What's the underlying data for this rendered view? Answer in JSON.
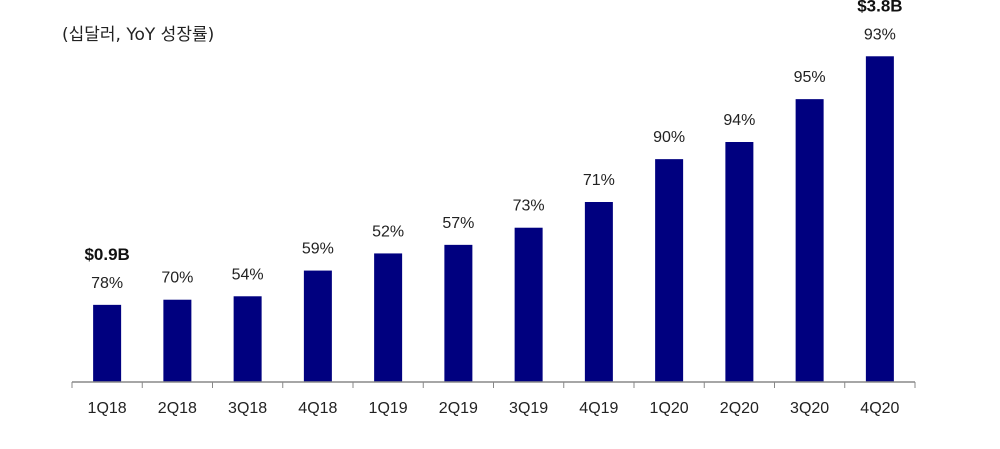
{
  "chart_data": {
    "type": "bar",
    "title": "",
    "unit_label": "(십달러, YoY 성장률)",
    "xlabel": "",
    "ylabel": "",
    "categories": [
      "1Q18",
      "2Q18",
      "3Q18",
      "4Q18",
      "1Q19",
      "2Q19",
      "3Q19",
      "4Q19",
      "1Q20",
      "2Q20",
      "3Q20",
      "4Q20"
    ],
    "values": [
      0.9,
      0.96,
      1.0,
      1.3,
      1.5,
      1.6,
      1.8,
      2.1,
      2.6,
      2.8,
      3.3,
      3.8
    ],
    "bar_labels": [
      "78%",
      "70%",
      "54%",
      "59%",
      "52%",
      "57%",
      "73%",
      "71%",
      "90%",
      "94%",
      "95%",
      "93%"
    ],
    "value_callouts": [
      {
        "category": "1Q18",
        "text": "$0.9B"
      },
      {
        "category": "4Q20",
        "text": "$3.8B"
      }
    ],
    "ylim": [
      0,
      4.2
    ],
    "grid": false,
    "bar_color": "#00007f"
  }
}
